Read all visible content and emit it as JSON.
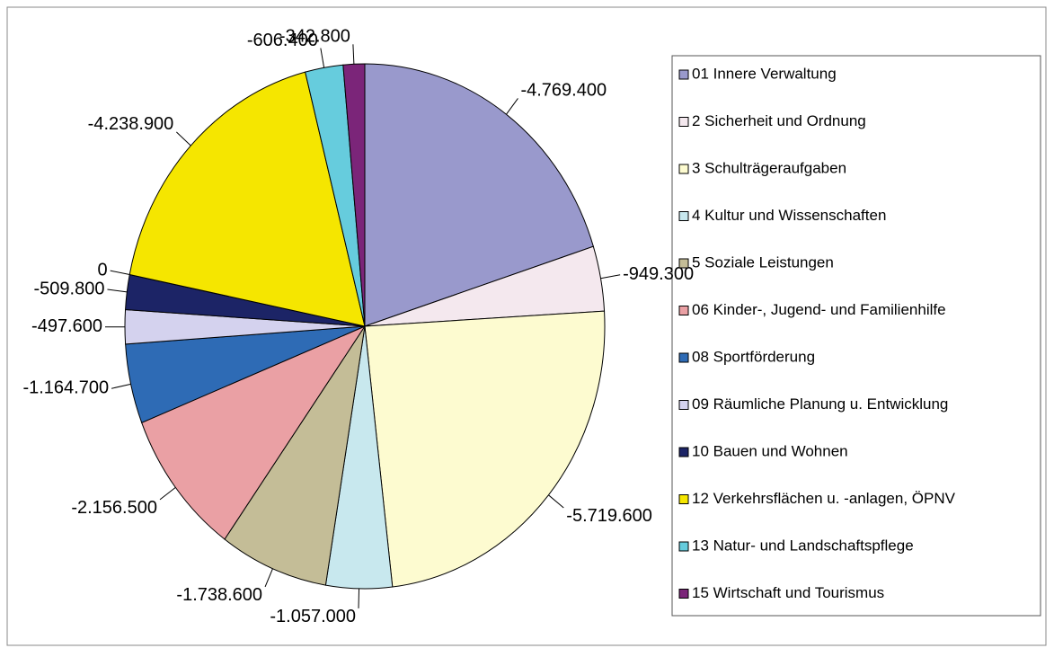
{
  "chart_data": {
    "type": "pie",
    "categories": [
      "01 Innere Verwaltung",
      "2  Sicherheit und Ordnung",
      "3  Schulträgeraufgaben",
      "4  Kultur und Wissenschaften",
      "5  Soziale Leistungen",
      "06 Kinder-, Jugend- und Familienhilfe",
      "08 Sportförderung",
      "09 Räumliche Planung u. Entwicklung",
      "10 Bauen und Wohnen",
      null,
      "12  Verkehrsflächen u. -anlagen, ÖPNV",
      "13  Natur- und Landschaftspflege",
      "15 Wirtschaft und Tourismus"
    ],
    "values": [
      -4769400,
      -949300,
      -5719600,
      -1057000,
      -1738600,
      -2156500,
      -1164700,
      -497600,
      -509800,
      0,
      -4238900,
      -606400,
      -342800
    ],
    "value_labels": [
      "-4.769.400",
      "-949.300",
      "-5.719.600",
      "-1.057.000",
      "-1.738.600",
      "-2.156.500",
      "-1.164.700",
      "-497.600",
      "-509.800",
      "0",
      "-4.238.900",
      "-606.400",
      "-342.800"
    ],
    "colors": [
      "#9999cc",
      "#f4e8ee",
      "#fdfbd0",
      "#c8e8ee",
      "#c4bd97",
      "#eaa0a4",
      "#2e6bb5",
      "#d4d2ee",
      "#1c2466",
      null,
      "#f5e600",
      "#66ccdd",
      "#7b2579"
    ],
    "legend": "right"
  }
}
